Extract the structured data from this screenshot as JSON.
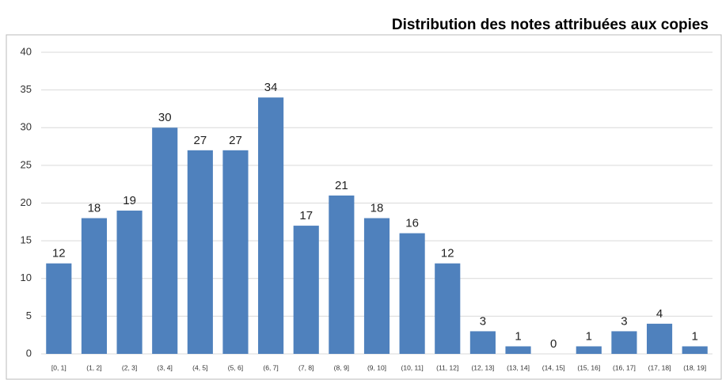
{
  "chart_data": {
    "type": "bar",
    "title": "Distribution des notes attribuées aux copies",
    "categories": [
      "[0, 1]",
      "(1, 2]",
      "(2, 3]",
      "(3, 4]",
      "(4, 5]",
      "(5, 6]",
      "(6, 7]",
      "(7, 8]",
      "(8, 9]",
      "(9, 10]",
      "(10, 11]",
      "(11, 12]",
      "(12, 13]",
      "(13, 14]",
      "(14, 15]",
      "(15, 16]",
      "(16, 17]",
      "(17, 18]",
      "(18, 19]"
    ],
    "values": [
      12,
      18,
      19,
      30,
      27,
      27,
      34,
      17,
      21,
      18,
      16,
      12,
      3,
      1,
      0,
      1,
      3,
      4,
      1
    ],
    "color": "#4f81bd",
    "ylim": [
      0,
      40
    ],
    "yticks": [
      0,
      5,
      10,
      15,
      20,
      25,
      30,
      35,
      40
    ],
    "grid": true
  }
}
